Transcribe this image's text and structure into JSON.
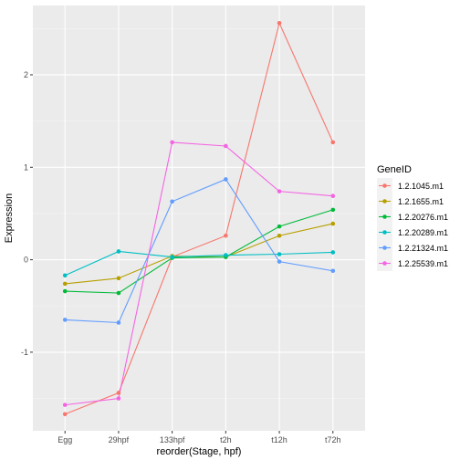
{
  "chart_data": {
    "type": "line",
    "xlabel": "reorder(Stage, hpf)",
    "ylabel": "Expression",
    "categories": [
      "Egg",
      "29hpf",
      "133hpf",
      "t2h",
      "t12h",
      "t72h"
    ],
    "ylim": [
      -1.85,
      2.75
    ],
    "yticks": [
      -1,
      0,
      1,
      2
    ],
    "grid": true,
    "legend": {
      "title": "GeneID",
      "placement": "right"
    },
    "series": [
      {
        "name": "1.2.1045.m1",
        "color": "#F8766D",
        "values": [
          -1.67,
          -1.44,
          0.03,
          0.26,
          2.56,
          1.27
        ]
      },
      {
        "name": "1.2.1655.m1",
        "color": "#B79F00",
        "values": [
          -0.26,
          -0.2,
          0.04,
          0.03,
          0.26,
          0.39
        ]
      },
      {
        "name": "1.2.20276.m1",
        "color": "#00BA38",
        "values": [
          -0.34,
          -0.36,
          0.02,
          0.03,
          0.36,
          0.54
        ]
      },
      {
        "name": "1.2.20289.m1",
        "color": "#00BFC4",
        "values": [
          -0.17,
          0.09,
          0.03,
          0.05,
          0.06,
          0.08
        ]
      },
      {
        "name": "1.2.21324.m1",
        "color": "#619CFF",
        "values": [
          -0.65,
          -0.68,
          0.63,
          0.87,
          -0.02,
          -0.12
        ]
      },
      {
        "name": "1.2.25539.m1",
        "color": "#F564E3",
        "values": [
          -1.57,
          -1.5,
          1.27,
          1.23,
          0.74,
          0.69
        ]
      }
    ]
  }
}
